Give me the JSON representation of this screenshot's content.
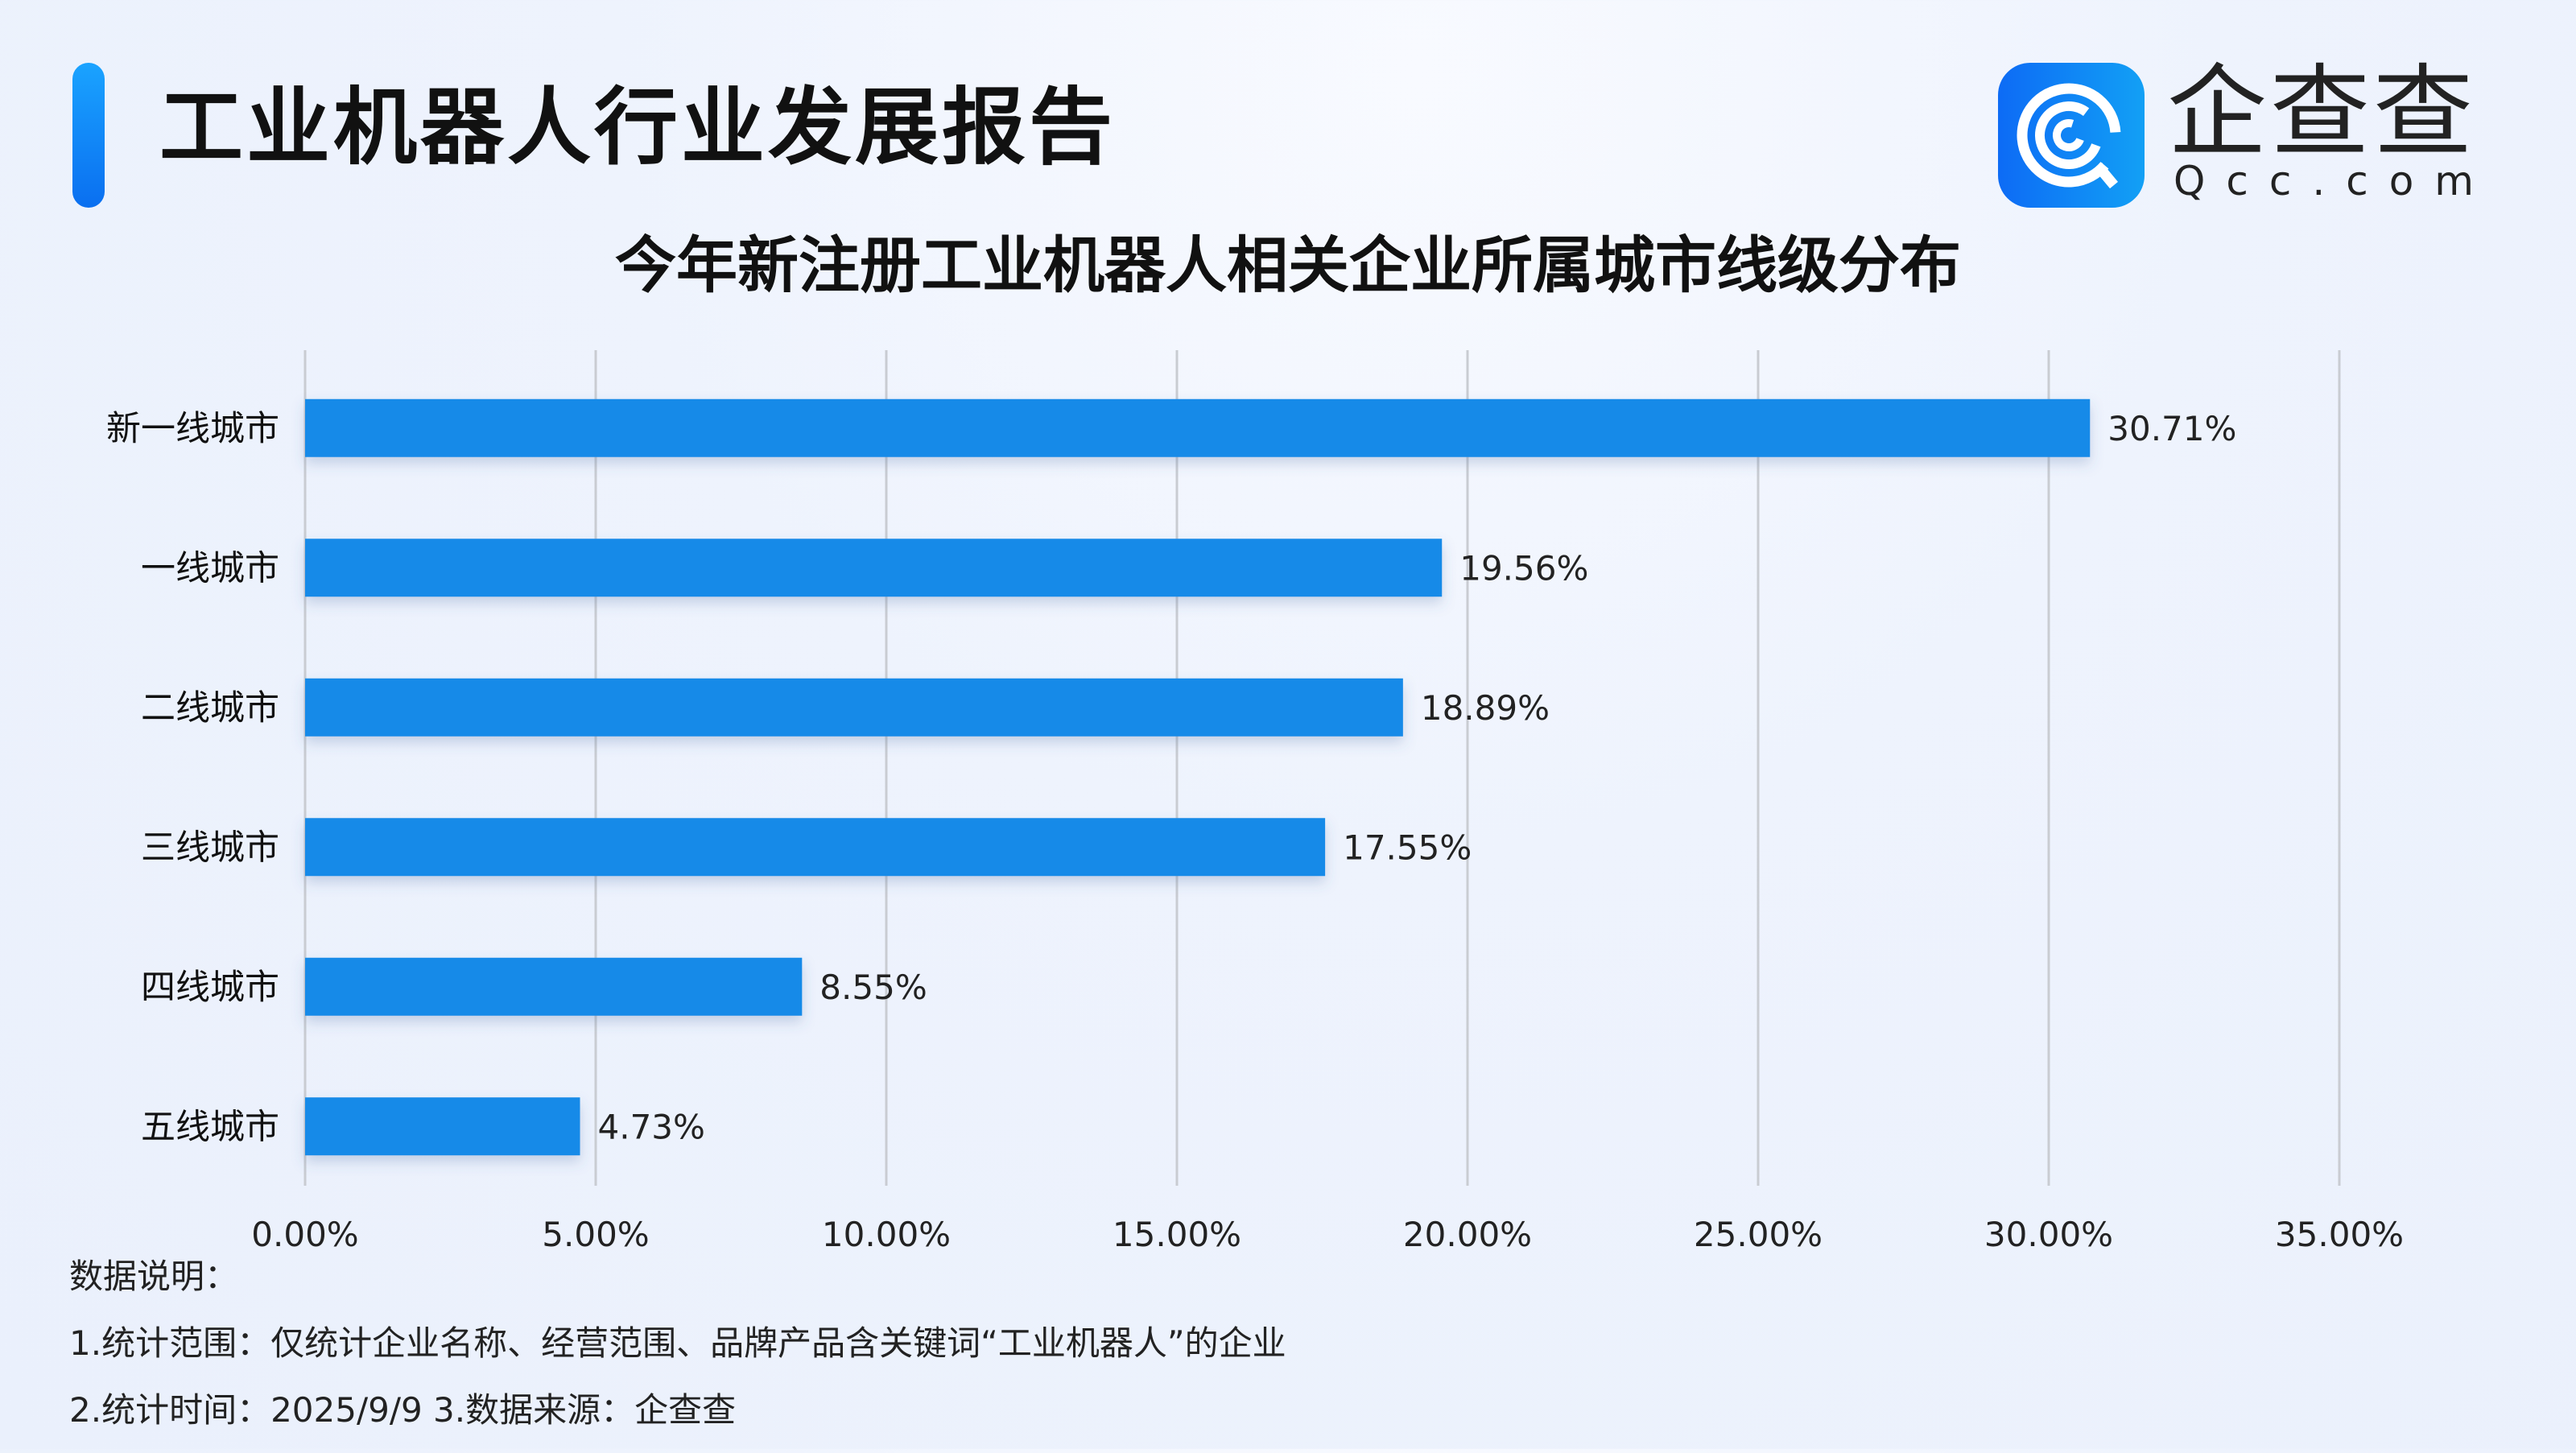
{
  "header": {
    "title": "工业机器人行业发展报告"
  },
  "logo": {
    "name": "企查查",
    "domain": "Qcc.com"
  },
  "chart_data": {
    "type": "bar",
    "orientation": "horizontal",
    "title": "今年新注册工业机器人相关企业所属城市线级分布",
    "categories": [
      "新一线城市",
      "一线城市",
      "二线城市",
      "三线城市",
      "四线城市",
      "五线城市"
    ],
    "values": [
      30.71,
      19.56,
      18.89,
      17.55,
      8.55,
      4.73
    ],
    "value_labels": [
      "30.71%",
      "19.56%",
      "18.89%",
      "17.55%",
      "8.55%",
      "4.73%"
    ],
    "xlim": [
      0,
      35
    ],
    "x_ticks": [
      0,
      5,
      10,
      15,
      20,
      25,
      30,
      35
    ],
    "x_tick_labels": [
      "0.00%",
      "5.00%",
      "10.00%",
      "15.00%",
      "20.00%",
      "25.00%",
      "30.00%",
      "35.00%"
    ],
    "grid": true,
    "bar_color": "#168ae8"
  },
  "notes": {
    "heading": "数据说明：",
    "line1": "1.统计范围：仅统计企业名称、经营范围、品牌产品含关键词“工业机器人”的企业",
    "line2": "2.统计时间：2025/9/9  3.数据来源：企查查"
  }
}
